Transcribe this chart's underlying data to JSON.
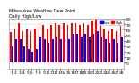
{
  "title1": "Milwaukee Weather Dew Point",
  "title2": "Daily High/Low",
  "bar_color_high": "#ff0000",
  "bar_color_low": "#0000ff",
  "background_color": "#ffffff",
  "legend_high": "High",
  "legend_low": "Low",
  "ylim": [
    -10,
    80
  ],
  "yticks": [
    0,
    10,
    20,
    30,
    40,
    50,
    60,
    70,
    80
  ],
  "categories": [
    "1",
    "2",
    "3",
    "4",
    "5",
    "6",
    "7",
    "8",
    "9",
    "10",
    "11",
    "12",
    "13",
    "14",
    "15",
    "16",
    "17",
    "18",
    "19",
    "20",
    "21",
    "22",
    "23",
    "24",
    "25",
    "26",
    "27",
    "28"
  ],
  "highs": [
    55,
    62,
    72,
    58,
    62,
    57,
    62,
    72,
    68,
    62,
    68,
    72,
    68,
    72,
    68,
    72,
    72,
    68,
    72,
    68,
    76,
    78,
    72,
    62,
    57,
    62,
    57,
    68
  ],
  "lows": [
    30,
    42,
    42,
    30,
    25,
    20,
    25,
    48,
    42,
    37,
    42,
    48,
    42,
    48,
    42,
    52,
    52,
    48,
    52,
    48,
    52,
    58,
    48,
    42,
    37,
    42,
    37,
    48
  ],
  "tick_fontsize": 3.2,
  "bar_width": 0.38
}
